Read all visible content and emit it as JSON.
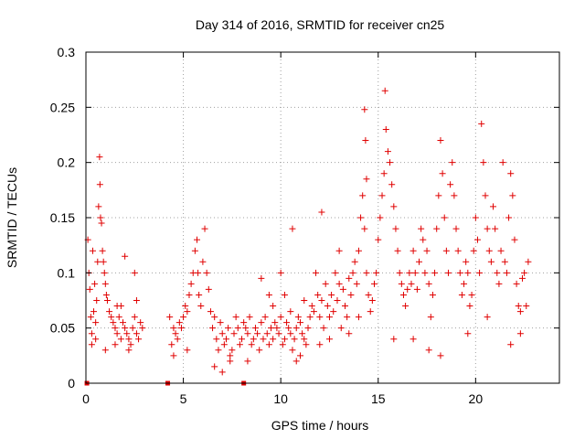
{
  "chart_data": {
    "type": "scatter",
    "title": "Day 314 of 2016, SRMTID for receiver cn25",
    "xlabel": "GPS time / hours",
    "ylabel": "SRMTID / TECUs",
    "xlim": [
      0,
      24.3
    ],
    "ylim": [
      0,
      0.3
    ],
    "x_ticks": [
      0,
      5,
      10,
      15,
      20
    ],
    "x_tick_labels": [
      "0",
      "5",
      "10",
      "15",
      "20"
    ],
    "y_ticks": [
      0,
      0.05,
      0.1,
      0.15,
      0.2,
      0.25,
      0.3
    ],
    "y_tick_labels": [
      "0",
      "0.05",
      "0.1",
      "0.15",
      "0.2",
      "0.25",
      "0.3"
    ],
    "grid": true,
    "marker": "+",
    "color": "#e00000",
    "zero_markers_x": [
      0.05,
      4.2,
      8.1
    ],
    "series": [
      {
        "name": "SRMTID",
        "points": [
          [
            0.1,
            0.13
          ],
          [
            0.15,
            0.1
          ],
          [
            0.2,
            0.085
          ],
          [
            0.25,
            0.06
          ],
          [
            0.3,
            0.045
          ],
          [
            0.35,
            0.12
          ],
          [
            0.4,
            0.065
          ],
          [
            0.45,
            0.09
          ],
          [
            0.5,
            0.04
          ],
          [
            0.55,
            0.075
          ],
          [
            0.6,
            0.11
          ],
          [
            0.65,
            0.16
          ],
          [
            0.7,
            0.205
          ],
          [
            0.72,
            0.18
          ],
          [
            0.75,
            0.15
          ],
          [
            0.8,
            0.145
          ],
          [
            0.85,
            0.12
          ],
          [
            0.9,
            0.11
          ],
          [
            0.95,
            0.1
          ],
          [
            1.0,
            0.09
          ],
          [
            1.05,
            0.08
          ],
          [
            1.1,
            0.075
          ],
          [
            1.2,
            0.065
          ],
          [
            1.3,
            0.06
          ],
          [
            1.4,
            0.055
          ],
          [
            1.5,
            0.05
          ],
          [
            1.6,
            0.045
          ],
          [
            1.7,
            0.06
          ],
          [
            1.8,
            0.07
          ],
          [
            1.9,
            0.055
          ],
          [
            2.0,
            0.05
          ],
          [
            2.1,
            0.045
          ],
          [
            2.2,
            0.04
          ],
          [
            2.3,
            0.035
          ],
          [
            2.4,
            0.05
          ],
          [
            2.5,
            0.06
          ],
          [
            2.6,
            0.045
          ],
          [
            2.7,
            0.04
          ],
          [
            2.8,
            0.055
          ],
          [
            2.5,
            0.1
          ],
          [
            1.5,
            0.035
          ],
          [
            1.0,
            0.03
          ],
          [
            2.0,
            0.115
          ],
          [
            1.6,
            0.07
          ],
          [
            2.2,
            0.03
          ],
          [
            2.6,
            0.075
          ],
          [
            0.3,
            0.035
          ],
          [
            0.5,
            0.055
          ],
          [
            1.8,
            0.04
          ],
          [
            2.9,
            0.05
          ],
          [
            4.3,
            0.06
          ],
          [
            4.4,
            0.035
          ],
          [
            4.5,
            0.05
          ],
          [
            4.6,
            0.045
          ],
          [
            4.7,
            0.04
          ],
          [
            4.8,
            0.055
          ],
          [
            4.9,
            0.05
          ],
          [
            5.0,
            0.06
          ],
          [
            5.1,
            0.07
          ],
          [
            5.2,
            0.065
          ],
          [
            5.3,
            0.08
          ],
          [
            5.4,
            0.09
          ],
          [
            5.5,
            0.1
          ],
          [
            5.6,
            0.12
          ],
          [
            5.7,
            0.13
          ],
          [
            5.75,
            0.1
          ],
          [
            5.8,
            0.08
          ],
          [
            5.9,
            0.07
          ],
          [
            6.0,
            0.11
          ],
          [
            6.1,
            0.14
          ],
          [
            6.2,
            0.1
          ],
          [
            6.3,
            0.085
          ],
          [
            6.4,
            0.065
          ],
          [
            6.5,
            0.05
          ],
          [
            6.6,
            0.06
          ],
          [
            6.7,
            0.04
          ],
          [
            6.8,
            0.03
          ],
          [
            6.9,
            0.055
          ],
          [
            7.0,
            0.045
          ],
          [
            7.1,
            0.035
          ],
          [
            7.2,
            0.04
          ],
          [
            7.3,
            0.05
          ],
          [
            7.4,
            0.025
          ],
          [
            7.5,
            0.03
          ],
          [
            7.6,
            0.045
          ],
          [
            7.7,
            0.06
          ],
          [
            7.8,
            0.05
          ],
          [
            7.9,
            0.035
          ],
          [
            8.0,
            0.04
          ],
          [
            8.1,
            0.055
          ],
          [
            8.2,
            0.05
          ],
          [
            8.3,
            0.045
          ],
          [
            8.4,
            0.06
          ],
          [
            8.5,
            0.035
          ],
          [
            8.6,
            0.04
          ],
          [
            8.7,
            0.05
          ],
          [
            8.8,
            0.045
          ],
          [
            8.9,
            0.03
          ],
          [
            9.0,
            0.055
          ],
          [
            9.1,
            0.04
          ],
          [
            4.5,
            0.025
          ],
          [
            5.2,
            0.03
          ],
          [
            6.6,
            0.015
          ],
          [
            7.0,
            0.01
          ],
          [
            7.4,
            0.02
          ],
          [
            8.3,
            0.02
          ],
          [
            9.2,
            0.06
          ],
          [
            9.3,
            0.045
          ],
          [
            9.4,
            0.035
          ],
          [
            9.5,
            0.05
          ],
          [
            9.6,
            0.04
          ],
          [
            9.7,
            0.055
          ],
          [
            9.8,
            0.05
          ],
          [
            9.9,
            0.045
          ],
          [
            10.0,
            0.06
          ],
          [
            10.1,
            0.035
          ],
          [
            10.2,
            0.04
          ],
          [
            10.3,
            0.055
          ],
          [
            10.4,
            0.05
          ],
          [
            10.5,
            0.045
          ],
          [
            10.6,
            0.03
          ],
          [
            10.7,
            0.04
          ],
          [
            10.8,
            0.05
          ],
          [
            10.9,
            0.06
          ],
          [
            11.0,
            0.055
          ],
          [
            11.1,
            0.045
          ],
          [
            11.2,
            0.04
          ],
          [
            11.3,
            0.035
          ],
          [
            11.4,
            0.05
          ],
          [
            11.5,
            0.06
          ],
          [
            9.4,
            0.08
          ],
          [
            9.0,
            0.095
          ],
          [
            10.0,
            0.1
          ],
          [
            10.5,
            0.065
          ],
          [
            11.0,
            0.025
          ],
          [
            10.8,
            0.02
          ],
          [
            11.2,
            0.075
          ],
          [
            10.6,
            0.14
          ],
          [
            10.2,
            0.08
          ],
          [
            9.6,
            0.07
          ],
          [
            11.6,
            0.07
          ],
          [
            11.7,
            0.065
          ],
          [
            11.8,
            0.1
          ],
          [
            11.9,
            0.08
          ],
          [
            12.0,
            0.06
          ],
          [
            12.1,
            0.075
          ],
          [
            12.2,
            0.05
          ],
          [
            12.3,
            0.09
          ],
          [
            12.4,
            0.07
          ],
          [
            12.5,
            0.06
          ],
          [
            12.6,
            0.08
          ],
          [
            12.7,
            0.065
          ],
          [
            12.8,
            0.1
          ],
          [
            12.9,
            0.075
          ],
          [
            13.0,
            0.09
          ],
          [
            13.1,
            0.05
          ],
          [
            13.2,
            0.085
          ],
          [
            13.3,
            0.07
          ],
          [
            13.4,
            0.06
          ],
          [
            13.5,
            0.095
          ],
          [
            13.6,
            0.08
          ],
          [
            13.7,
            0.1
          ],
          [
            13.8,
            0.11
          ],
          [
            13.9,
            0.09
          ],
          [
            14.0,
            0.12
          ],
          [
            14.1,
            0.15
          ],
          [
            14.2,
            0.17
          ],
          [
            14.3,
            0.14
          ],
          [
            14.4,
            0.1
          ],
          [
            14.5,
            0.08
          ],
          [
            12.1,
            0.155
          ],
          [
            12.0,
            0.035
          ],
          [
            12.5,
            0.04
          ],
          [
            13.0,
            0.12
          ],
          [
            13.5,
            0.045
          ],
          [
            14.0,
            0.06
          ],
          [
            14.3,
            0.248
          ],
          [
            14.35,
            0.22
          ],
          [
            14.4,
            0.185
          ],
          [
            14.6,
            0.065
          ],
          [
            14.7,
            0.075
          ],
          [
            14.8,
            0.09
          ],
          [
            14.9,
            0.1
          ],
          [
            15.0,
            0.13
          ],
          [
            15.1,
            0.15
          ],
          [
            15.2,
            0.17
          ],
          [
            15.3,
            0.19
          ],
          [
            15.35,
            0.265
          ],
          [
            15.4,
            0.23
          ],
          [
            15.5,
            0.21
          ],
          [
            15.6,
            0.2
          ],
          [
            15.7,
            0.18
          ],
          [
            15.8,
            0.16
          ],
          [
            15.9,
            0.14
          ],
          [
            16.0,
            0.12
          ],
          [
            16.1,
            0.1
          ],
          [
            16.2,
            0.09
          ],
          [
            16.3,
            0.08
          ],
          [
            16.4,
            0.07
          ],
          [
            16.5,
            0.085
          ],
          [
            16.6,
            0.1
          ],
          [
            16.7,
            0.09
          ],
          [
            16.8,
            0.12
          ],
          [
            16.9,
            0.1
          ],
          [
            17.0,
            0.085
          ],
          [
            17.1,
            0.11
          ],
          [
            17.2,
            0.14
          ],
          [
            17.3,
            0.13
          ],
          [
            17.4,
            0.1
          ],
          [
            17.5,
            0.12
          ],
          [
            17.6,
            0.09
          ],
          [
            17.7,
            0.06
          ],
          [
            17.8,
            0.08
          ],
          [
            17.9,
            0.1
          ],
          [
            18.0,
            0.14
          ],
          [
            18.1,
            0.17
          ],
          [
            18.2,
            0.22
          ],
          [
            18.3,
            0.19
          ],
          [
            18.4,
            0.15
          ],
          [
            18.5,
            0.12
          ],
          [
            18.6,
            0.1
          ],
          [
            18.7,
            0.18
          ],
          [
            18.8,
            0.2
          ],
          [
            18.9,
            0.17
          ],
          [
            19.0,
            0.14
          ],
          [
            19.1,
            0.12
          ],
          [
            19.2,
            0.1
          ],
          [
            19.3,
            0.08
          ],
          [
            19.4,
            0.09
          ],
          [
            19.5,
            0.11
          ],
          [
            19.6,
            0.1
          ],
          [
            19.7,
            0.07
          ],
          [
            19.8,
            0.08
          ],
          [
            19.9,
            0.12
          ],
          [
            20.0,
            0.15
          ],
          [
            20.1,
            0.13
          ],
          [
            20.2,
            0.1
          ],
          [
            20.3,
            0.235
          ],
          [
            20.4,
            0.2
          ],
          [
            20.5,
            0.17
          ],
          [
            20.6,
            0.14
          ],
          [
            20.7,
            0.12
          ],
          [
            20.8,
            0.11
          ],
          [
            20.9,
            0.16
          ],
          [
            21.0,
            0.14
          ],
          [
            21.1,
            0.1
          ],
          [
            21.2,
            0.09
          ],
          [
            21.3,
            0.12
          ],
          [
            21.4,
            0.2
          ],
          [
            21.5,
            0.11
          ],
          [
            21.6,
            0.1
          ],
          [
            21.7,
            0.15
          ],
          [
            21.8,
            0.19
          ],
          [
            21.9,
            0.17
          ],
          [
            22.0,
            0.13
          ],
          [
            22.1,
            0.09
          ],
          [
            22.2,
            0.07
          ],
          [
            22.3,
            0.065
          ],
          [
            22.4,
            0.095
          ],
          [
            22.5,
            0.1
          ],
          [
            15.8,
            0.04
          ],
          [
            16.8,
            0.04
          ],
          [
            17.6,
            0.03
          ],
          [
            18.2,
            0.025
          ],
          [
            19.6,
            0.045
          ],
          [
            20.6,
            0.06
          ],
          [
            21.8,
            0.035
          ],
          [
            22.3,
            0.045
          ],
          [
            22.6,
            0.07
          ],
          [
            22.7,
            0.11
          ]
        ]
      }
    ]
  }
}
